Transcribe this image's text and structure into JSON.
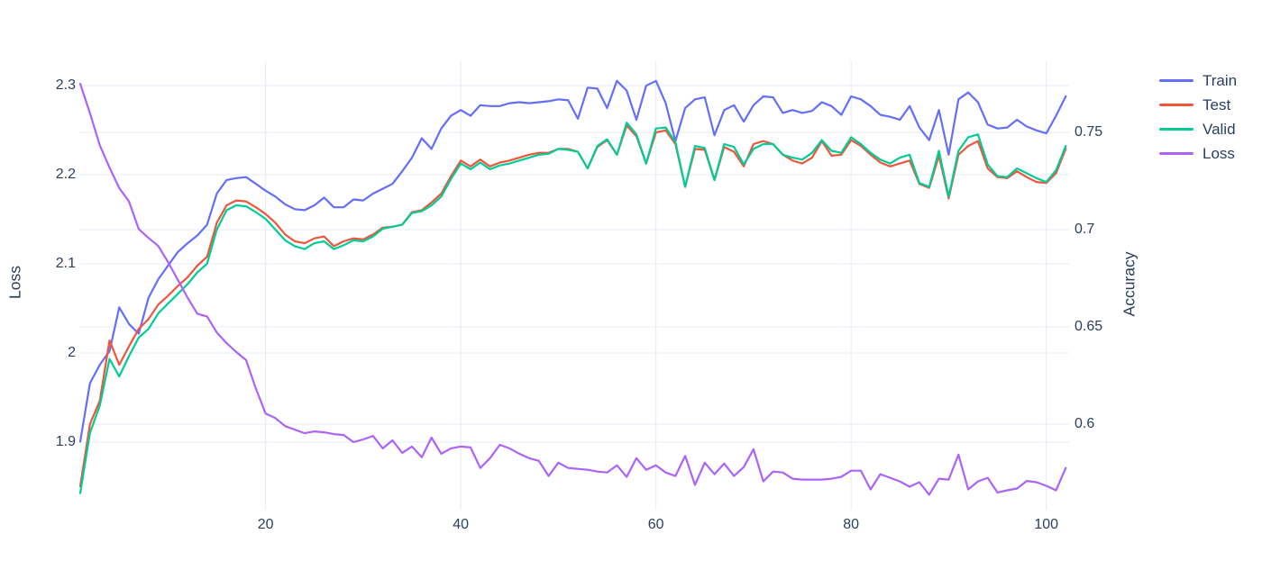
{
  "chart_data": {
    "type": "line",
    "title": "",
    "xlabel": "",
    "ylabel_left": "Loss",
    "ylabel_right": "Accuracy",
    "x_range": [
      1,
      102
    ],
    "x_tick_values": [
      20,
      40,
      60,
      80,
      100
    ],
    "x_tick_labels": [
      "20",
      "40",
      "60",
      "80",
      "100"
    ],
    "left_axis": {
      "title": "Loss",
      "tick_values": [
        1.9,
        2.0,
        2.1,
        2.2,
        2.3
      ],
      "tick_labels": [
        "1.9",
        "2",
        "2.1",
        "2.2",
        "2.3"
      ],
      "range": [
        1.83,
        2.31
      ]
    },
    "right_axis": {
      "title": "Accuracy",
      "tick_values": [
        0.6,
        0.65,
        0.7,
        0.75
      ],
      "tick_labels": [
        "0.6",
        "0.65",
        "0.7",
        "0.75"
      ],
      "range": [
        0.555,
        0.785
      ]
    },
    "grid": true,
    "legend_position": "top-right-outside",
    "series": [
      {
        "name": "Train",
        "axis": "right",
        "color": "#636efa",
        "values": [
          0.591,
          0.621,
          0.6305,
          0.6375,
          0.66,
          0.6515,
          0.6465,
          0.665,
          0.6745,
          0.6815,
          0.6885,
          0.693,
          0.697,
          0.7025,
          0.7185,
          0.7255,
          0.7265,
          0.727,
          0.7235,
          0.72,
          0.717,
          0.713,
          0.7105,
          0.71,
          0.7125,
          0.7165,
          0.7115,
          0.7115,
          0.7155,
          0.715,
          0.7185,
          0.721,
          0.7235,
          0.73,
          0.737,
          0.747,
          0.7415,
          0.752,
          0.7585,
          0.7615,
          0.7585,
          0.764,
          0.7635,
          0.7635,
          0.765,
          0.7655,
          0.765,
          0.7655,
          0.766,
          0.767,
          0.7665,
          0.757,
          0.773,
          0.7725,
          0.7625,
          0.7765,
          0.7715,
          0.7565,
          0.774,
          0.7765,
          0.765,
          0.7455,
          0.7625,
          0.767,
          0.768,
          0.7485,
          0.7615,
          0.764,
          0.7555,
          0.764,
          0.7685,
          0.768,
          0.76,
          0.7615,
          0.76,
          0.761,
          0.7655,
          0.7635,
          0.759,
          0.7685,
          0.767,
          0.7635,
          0.759,
          0.758,
          0.7565,
          0.7635,
          0.7525,
          0.746,
          0.7615,
          0.7385,
          0.767,
          0.7705,
          0.7655,
          0.754,
          0.752,
          0.7525,
          0.7565,
          0.753,
          0.751,
          0.7495,
          0.7585,
          0.7685
        ]
      },
      {
        "name": "Test",
        "axis": "right",
        "color": "#ef553b",
        "values": [
          0.568,
          0.6,
          0.612,
          0.643,
          0.6305,
          0.64,
          0.649,
          0.654,
          0.6615,
          0.666,
          0.671,
          0.6755,
          0.6815,
          0.686,
          0.7035,
          0.7125,
          0.715,
          0.7145,
          0.7115,
          0.708,
          0.7035,
          0.6975,
          0.694,
          0.693,
          0.6955,
          0.6965,
          0.6915,
          0.694,
          0.6955,
          0.695,
          0.6975,
          0.701,
          0.7015,
          0.7025,
          0.709,
          0.71,
          0.714,
          0.7185,
          0.7275,
          0.7355,
          0.7325,
          0.736,
          0.7325,
          0.7345,
          0.7355,
          0.737,
          0.7385,
          0.7395,
          0.7395,
          0.7415,
          0.7415,
          0.74,
          0.7315,
          0.7425,
          0.746,
          0.7385,
          0.7535,
          0.748,
          0.734,
          0.75,
          0.751,
          0.744,
          0.722,
          0.7415,
          0.741,
          0.7255,
          0.7425,
          0.74,
          0.7325,
          0.744,
          0.7455,
          0.744,
          0.7385,
          0.7355,
          0.734,
          0.737,
          0.7455,
          0.738,
          0.7385,
          0.746,
          0.743,
          0.7385,
          0.7345,
          0.7325,
          0.734,
          0.7355,
          0.7235,
          0.7215,
          0.738,
          0.716,
          0.7385,
          0.743,
          0.7455,
          0.7315,
          0.727,
          0.7265,
          0.73,
          0.727,
          0.7245,
          0.724,
          0.729,
          0.7415
        ]
      },
      {
        "name": "Valid",
        "axis": "right",
        "color": "#00cc96",
        "values": [
          0.5645,
          0.5955,
          0.6095,
          0.6335,
          0.6245,
          0.635,
          0.6445,
          0.649,
          0.657,
          0.662,
          0.667,
          0.672,
          0.678,
          0.6825,
          0.7,
          0.71,
          0.7125,
          0.712,
          0.709,
          0.7055,
          0.7,
          0.6945,
          0.6915,
          0.69,
          0.693,
          0.694,
          0.69,
          0.692,
          0.6945,
          0.694,
          0.6965,
          0.7005,
          0.7015,
          0.7025,
          0.7085,
          0.7095,
          0.7125,
          0.717,
          0.726,
          0.734,
          0.731,
          0.7345,
          0.731,
          0.733,
          0.734,
          0.7355,
          0.737,
          0.7385,
          0.739,
          0.7415,
          0.741,
          0.74,
          0.7315,
          0.743,
          0.7465,
          0.7385,
          0.755,
          0.749,
          0.734,
          0.752,
          0.7525,
          0.745,
          0.722,
          0.743,
          0.742,
          0.7255,
          0.744,
          0.7425,
          0.7335,
          0.7415,
          0.744,
          0.744,
          0.7385,
          0.737,
          0.736,
          0.7395,
          0.746,
          0.7405,
          0.7395,
          0.7475,
          0.744,
          0.7395,
          0.736,
          0.734,
          0.737,
          0.7385,
          0.724,
          0.722,
          0.7405,
          0.717,
          0.7405,
          0.7475,
          0.749,
          0.7335,
          0.7275,
          0.727,
          0.7315,
          0.729,
          0.7265,
          0.7245,
          0.7305,
          0.743
        ]
      },
      {
        "name": "Loss",
        "axis": "left",
        "color": "#ab63fa",
        "values": [
          2.302,
          2.269,
          2.233,
          2.208,
          2.185,
          2.17,
          2.139,
          2.129,
          2.12,
          2.102,
          2.082,
          2.062,
          2.044,
          2.041,
          2.023,
          2.011,
          2.001,
          1.992,
          1.96,
          1.932,
          1.927,
          1.918,
          1.914,
          1.91,
          1.912,
          1.911,
          1.909,
          1.908,
          1.9,
          1.903,
          1.907,
          1.893,
          1.902,
          1.888,
          1.895,
          1.883,
          1.905,
          1.887,
          1.893,
          1.895,
          1.894,
          1.871,
          1.882,
          1.897,
          1.893,
          1.887,
          1.882,
          1.879,
          1.862,
          1.877,
          1.871,
          1.87,
          1.869,
          1.867,
          1.866,
          1.874,
          1.861,
          1.882,
          1.869,
          1.874,
          1.866,
          1.862,
          1.8845,
          1.852,
          1.877,
          1.864,
          1.876,
          1.862,
          1.872,
          1.892,
          1.856,
          1.867,
          1.866,
          1.859,
          1.858,
          1.858,
          1.858,
          1.859,
          1.861,
          1.868,
          1.868,
          1.847,
          1.864,
          1.86,
          1.856,
          1.85,
          1.855,
          1.841,
          1.859,
          1.858,
          1.886,
          1.847,
          1.856,
          1.86,
          1.8435,
          1.846,
          1.848,
          1.8565,
          1.855,
          1.851,
          1.846,
          1.871
        ]
      }
    ]
  },
  "legend": {
    "items": [
      {
        "label": "Train",
        "color": "#636efa"
      },
      {
        "label": "Test",
        "color": "#ef553b"
      },
      {
        "label": "Valid",
        "color": "#00cc96"
      },
      {
        "label": "Loss",
        "color": "#ab63fa"
      }
    ]
  },
  "colors": {
    "text": "#2a3f5f",
    "grid": "#e6ecf5",
    "background": "#ffffff"
  }
}
